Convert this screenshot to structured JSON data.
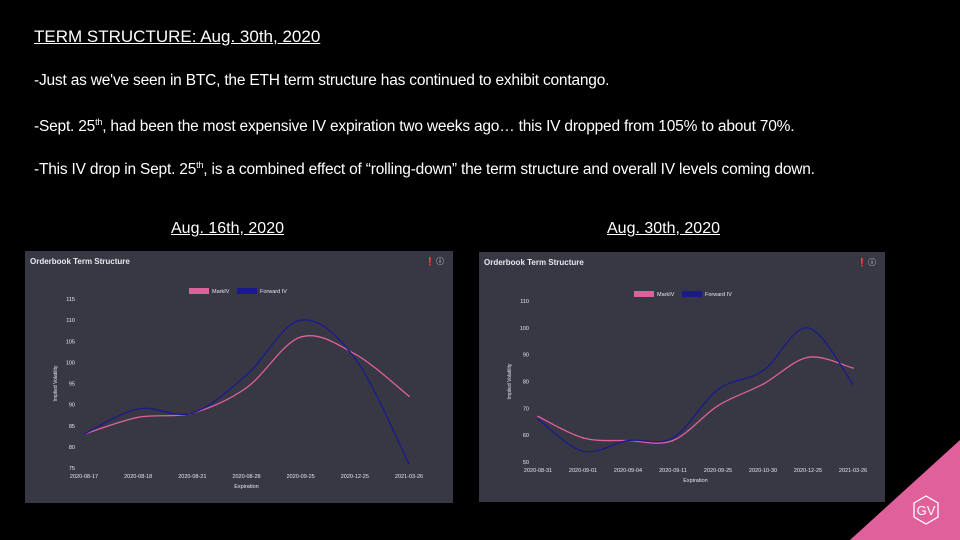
{
  "slide": {
    "title": "TERM STRUCTURE: Aug. 30th, 2020",
    "bullet1": "-Just as we've seen in BTC, the ETH term structure has continued to exhibit contango.",
    "bullet2_pre": "-Sept. 25",
    "bullet2_sup": "th",
    "bullet2_post": ", had been the most expensive IV expiration two weeks ago… this IV dropped from 105% to about 70%.",
    "bullet3_pre": "-This IV drop in Sept. 25",
    "bullet3_sup": "th",
    "bullet3_post": ", is a combined effect of “rolling-down” the term structure and overall IV levels coming down.",
    "left_heading": "Aug. 16th, 2020",
    "right_heading": "Aug. 30th, 2020",
    "logo_text": "GV"
  },
  "colors": {
    "markiv": "#e0609c",
    "forward": "#1a1a8c",
    "panel": "#383845"
  },
  "chart_data": [
    {
      "type": "line",
      "title": "Orderbook Term Structure",
      "xlabel": "Expiration",
      "ylabel": "Implied Volatility",
      "categories": [
        "2020-08-17",
        "2020-08-18",
        "2020-08-21",
        "2020-08-28",
        "2020-09-25",
        "2020-12-25",
        "2021-03-26"
      ],
      "ylim": [
        75,
        115
      ],
      "yticks": [
        75,
        80,
        85,
        90,
        95,
        100,
        105,
        110,
        115
      ],
      "legend": "top-center",
      "grid": false,
      "series": [
        {
          "name": "MarkIV",
          "values": [
            83,
            87,
            88,
            94,
            106,
            102,
            92
          ]
        },
        {
          "name": "Forward IV",
          "values": [
            83,
            89,
            88,
            97,
            110,
            101,
            76
          ]
        }
      ]
    },
    {
      "type": "line",
      "title": "Orderbook Term Structure",
      "xlabel": "Expiration",
      "ylabel": "Implied Volatility",
      "categories": [
        "2020-08-31",
        "2020-09-01",
        "2020-09-04",
        "2020-09-11",
        "2020-09-25",
        "2020-10-30",
        "2020-12-25",
        "2021-03-26"
      ],
      "ylim": [
        50,
        110
      ],
      "yticks": [
        50,
        60,
        70,
        80,
        90,
        100,
        110
      ],
      "legend": "top-center",
      "grid": false,
      "series": [
        {
          "name": "MarkIV",
          "values": [
            67,
            59,
            58,
            58,
            71,
            79,
            89,
            85
          ]
        },
        {
          "name": "Forward IV",
          "values": [
            66,
            54,
            58,
            59,
            77,
            84,
            100,
            79
          ]
        }
      ]
    }
  ]
}
